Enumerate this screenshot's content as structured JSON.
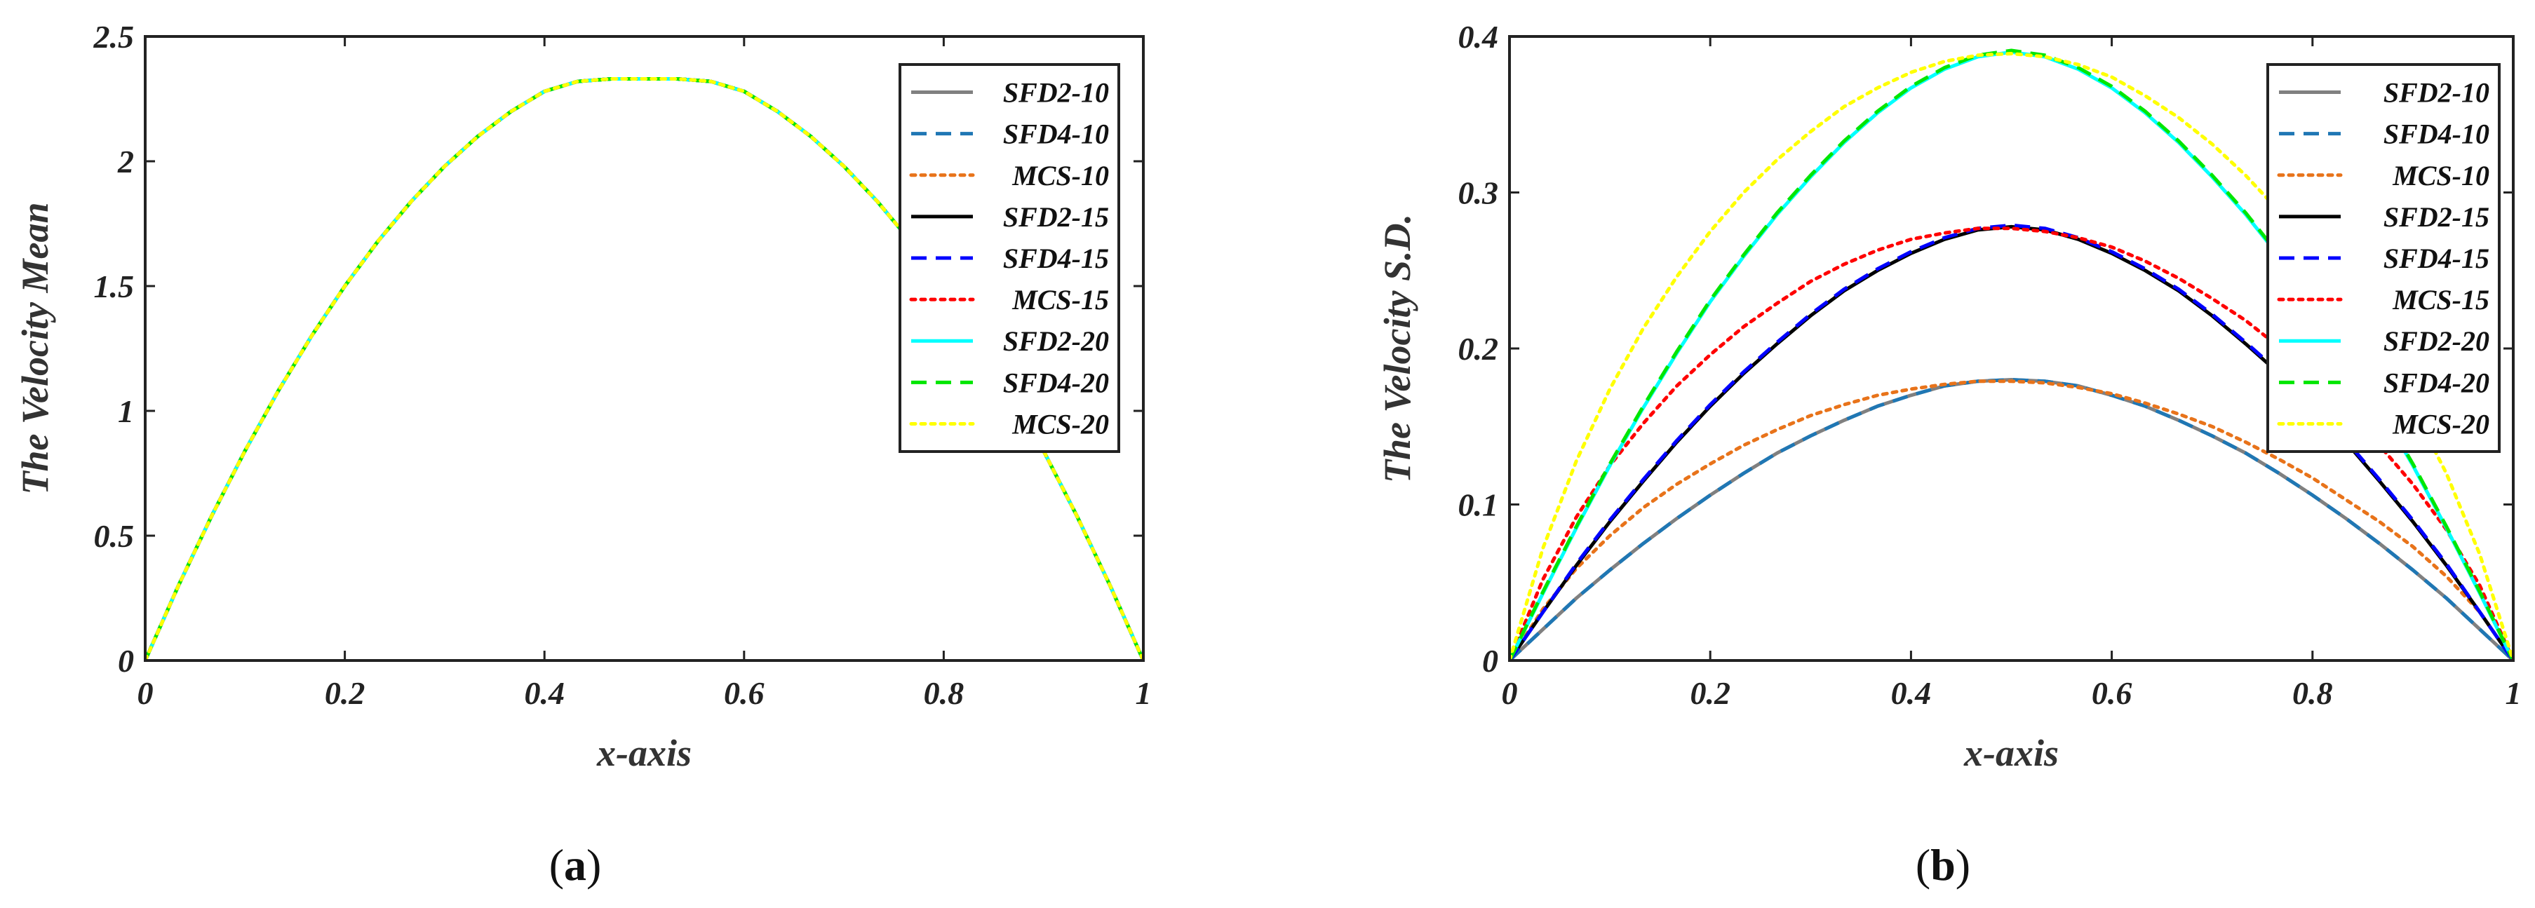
{
  "chart_data": [
    {
      "id": "a",
      "type": "line",
      "caption_open": "(",
      "caption_letter": "a",
      "caption_close": ")",
      "xlabel": "x-axis",
      "ylabel": "The Velocity Mean",
      "xlim": [
        0,
        1
      ],
      "ylim": [
        0,
        2.5
      ],
      "xticks": [
        0,
        0.2,
        0.4,
        0.6,
        0.8,
        1
      ],
      "xtick_labels": [
        "0",
        "0.2",
        "0.4",
        "0.6",
        "0.8",
        "1"
      ],
      "yticks": [
        0,
        0.5,
        1,
        1.5,
        2,
        2.5
      ],
      "ytick_labels": [
        "0",
        "0.5",
        "1",
        "1.5",
        "2",
        "2.5"
      ],
      "legend_position": "top-right",
      "x": [
        0,
        0.0333,
        0.0667,
        0.1,
        0.1333,
        0.1667,
        0.2,
        0.2333,
        0.2667,
        0.3,
        0.3333,
        0.3667,
        0.4,
        0.4333,
        0.4667,
        0.5,
        0.5333,
        0.5667,
        0.6,
        0.6333,
        0.6667,
        0.7,
        0.7333,
        0.7667,
        0.8,
        0.8333,
        0.8667,
        0.9,
        0.9333,
        0.9667,
        1
      ],
      "series": [
        {
          "name": "SFD2-10",
          "color": "#808080",
          "dash": "solid",
          "values": [
            0,
            0.3,
            0.58,
            0.84,
            1.08,
            1.3,
            1.5,
            1.68,
            1.84,
            1.98,
            2.1,
            2.2,
            2.28,
            2.32,
            2.33,
            2.33,
            2.33,
            2.32,
            2.28,
            2.2,
            2.1,
            1.98,
            1.84,
            1.68,
            1.5,
            1.3,
            1.08,
            0.84,
            0.58,
            0.3,
            0
          ]
        },
        {
          "name": "SFD4-10",
          "color": "#1f77b4",
          "dash": "dashed",
          "values": [
            0,
            0.3,
            0.58,
            0.84,
            1.08,
            1.3,
            1.5,
            1.68,
            1.84,
            1.98,
            2.1,
            2.2,
            2.28,
            2.32,
            2.33,
            2.33,
            2.33,
            2.32,
            2.28,
            2.2,
            2.1,
            1.98,
            1.84,
            1.68,
            1.5,
            1.3,
            1.08,
            0.84,
            0.58,
            0.3,
            0
          ]
        },
        {
          "name": "MCS-10",
          "color": "#e8731a",
          "dash": "dotted",
          "values": [
            0,
            0.3,
            0.58,
            0.84,
            1.08,
            1.3,
            1.5,
            1.68,
            1.84,
            1.98,
            2.1,
            2.2,
            2.28,
            2.32,
            2.33,
            2.33,
            2.33,
            2.32,
            2.28,
            2.2,
            2.1,
            1.98,
            1.84,
            1.68,
            1.5,
            1.3,
            1.08,
            0.84,
            0.58,
            0.3,
            0
          ]
        },
        {
          "name": "SFD2-15",
          "color": "#000000",
          "dash": "solid",
          "values": [
            0,
            0.3,
            0.58,
            0.84,
            1.08,
            1.3,
            1.5,
            1.68,
            1.84,
            1.98,
            2.1,
            2.2,
            2.28,
            2.32,
            2.33,
            2.33,
            2.33,
            2.32,
            2.28,
            2.2,
            2.1,
            1.98,
            1.84,
            1.68,
            1.5,
            1.3,
            1.08,
            0.84,
            0.58,
            0.3,
            0
          ]
        },
        {
          "name": "SFD4-15",
          "color": "#0000ff",
          "dash": "dashed",
          "values": [
            0,
            0.3,
            0.58,
            0.84,
            1.08,
            1.3,
            1.5,
            1.68,
            1.84,
            1.98,
            2.1,
            2.2,
            2.28,
            2.32,
            2.33,
            2.33,
            2.33,
            2.32,
            2.28,
            2.2,
            2.1,
            1.98,
            1.84,
            1.68,
            1.5,
            1.3,
            1.08,
            0.84,
            0.58,
            0.3,
            0
          ]
        },
        {
          "name": "MCS-15",
          "color": "#ff0000",
          "dash": "dotted",
          "values": [
            0,
            0.3,
            0.58,
            0.84,
            1.08,
            1.3,
            1.5,
            1.68,
            1.84,
            1.98,
            2.1,
            2.2,
            2.28,
            2.32,
            2.33,
            2.33,
            2.33,
            2.32,
            2.28,
            2.2,
            2.1,
            1.98,
            1.84,
            1.68,
            1.5,
            1.3,
            1.08,
            0.84,
            0.58,
            0.3,
            0
          ]
        },
        {
          "name": "SFD2-20",
          "color": "#00ffff",
          "dash": "solid",
          "values": [
            0,
            0.3,
            0.58,
            0.84,
            1.08,
            1.3,
            1.5,
            1.68,
            1.84,
            1.98,
            2.1,
            2.2,
            2.28,
            2.32,
            2.33,
            2.33,
            2.33,
            2.32,
            2.28,
            2.2,
            2.1,
            1.98,
            1.84,
            1.68,
            1.5,
            1.3,
            1.08,
            0.84,
            0.58,
            0.3,
            0
          ]
        },
        {
          "name": "SFD4-20",
          "color": "#00e600",
          "dash": "dashed",
          "values": [
            0,
            0.3,
            0.58,
            0.84,
            1.08,
            1.3,
            1.5,
            1.68,
            1.84,
            1.98,
            2.1,
            2.2,
            2.28,
            2.32,
            2.33,
            2.33,
            2.33,
            2.32,
            2.28,
            2.2,
            2.1,
            1.98,
            1.84,
            1.68,
            1.5,
            1.3,
            1.08,
            0.84,
            0.58,
            0.3,
            0
          ]
        },
        {
          "name": "MCS-20",
          "color": "#ffff00",
          "dash": "dotted",
          "values": [
            0,
            0.3,
            0.58,
            0.84,
            1.08,
            1.3,
            1.5,
            1.68,
            1.84,
            1.98,
            2.1,
            2.2,
            2.28,
            2.32,
            2.33,
            2.33,
            2.33,
            2.32,
            2.28,
            2.2,
            2.1,
            1.98,
            1.84,
            1.68,
            1.5,
            1.3,
            1.08,
            0.84,
            0.58,
            0.3,
            0
          ]
        }
      ]
    },
    {
      "id": "b",
      "type": "line",
      "caption_open": "(",
      "caption_letter": "b",
      "caption_close": ")",
      "xlabel": "x-axis",
      "ylabel": "The Velocity S.D.",
      "xlim": [
        0,
        1
      ],
      "ylim": [
        0,
        0.4
      ],
      "xticks": [
        0,
        0.2,
        0.4,
        0.6,
        0.8,
        1
      ],
      "xtick_labels": [
        "0",
        "0.2",
        "0.4",
        "0.6",
        "0.8",
        "1"
      ],
      "yticks": [
        0,
        0.1,
        0.2,
        0.3,
        0.4
      ],
      "ytick_labels": [
        "0",
        "0.1",
        "0.2",
        "0.3",
        "0.4"
      ],
      "legend_position": "top-right",
      "x": [
        0,
        0.0333,
        0.0667,
        0.1,
        0.1333,
        0.1667,
        0.2,
        0.2333,
        0.2667,
        0.3,
        0.3333,
        0.3667,
        0.4,
        0.4333,
        0.4667,
        0.5,
        0.5333,
        0.5667,
        0.6,
        0.6333,
        0.6667,
        0.7,
        0.7333,
        0.7667,
        0.8,
        0.8333,
        0.8667,
        0.9,
        0.9333,
        0.9667,
        1
      ],
      "series": [
        {
          "name": "SFD2-10",
          "color": "#808080",
          "dash": "solid",
          "values": [
            0,
            0.02,
            0.04,
            0.058,
            0.075,
            0.091,
            0.106,
            0.12,
            0.133,
            0.144,
            0.154,
            0.163,
            0.17,
            0.176,
            0.179,
            0.18,
            0.179,
            0.176,
            0.17,
            0.163,
            0.154,
            0.144,
            0.133,
            0.12,
            0.106,
            0.091,
            0.075,
            0.058,
            0.04,
            0.02,
            0
          ]
        },
        {
          "name": "SFD4-10",
          "color": "#1f77b4",
          "dash": "dashed",
          "values": [
            0,
            0.02,
            0.04,
            0.058,
            0.075,
            0.091,
            0.106,
            0.12,
            0.133,
            0.144,
            0.154,
            0.163,
            0.17,
            0.176,
            0.179,
            0.18,
            0.179,
            0.176,
            0.17,
            0.163,
            0.154,
            0.144,
            0.133,
            0.12,
            0.106,
            0.091,
            0.075,
            0.058,
            0.04,
            0.02,
            0
          ]
        },
        {
          "name": "MCS-10",
          "color": "#e8731a",
          "dash": "dotted",
          "values": [
            0,
            0.033,
            0.059,
            0.08,
            0.098,
            0.113,
            0.126,
            0.138,
            0.148,
            0.157,
            0.164,
            0.17,
            0.174,
            0.177,
            0.179,
            0.179,
            0.178,
            0.175,
            0.171,
            0.165,
            0.158,
            0.15,
            0.14,
            0.129,
            0.117,
            0.103,
            0.089,
            0.073,
            0.054,
            0.031,
            0
          ]
        },
        {
          "name": "SFD2-15",
          "color": "#000000",
          "dash": "solid",
          "values": [
            0,
            0.031,
            0.061,
            0.089,
            0.115,
            0.14,
            0.163,
            0.184,
            0.203,
            0.221,
            0.237,
            0.25,
            0.261,
            0.27,
            0.276,
            0.278,
            0.276,
            0.27,
            0.261,
            0.25,
            0.237,
            0.221,
            0.203,
            0.184,
            0.163,
            0.14,
            0.115,
            0.089,
            0.061,
            0.031,
            0
          ]
        },
        {
          "name": "SFD4-15",
          "color": "#0000ff",
          "dash": "dashed",
          "values": [
            0,
            0.031,
            0.062,
            0.09,
            0.116,
            0.141,
            0.164,
            0.185,
            0.204,
            0.222,
            0.238,
            0.251,
            0.262,
            0.271,
            0.277,
            0.279,
            0.277,
            0.271,
            0.262,
            0.251,
            0.238,
            0.222,
            0.204,
            0.185,
            0.164,
            0.141,
            0.116,
            0.09,
            0.062,
            0.031,
            0
          ]
        },
        {
          "name": "MCS-15",
          "color": "#ff0000",
          "dash": "dotted",
          "values": [
            0,
            0.052,
            0.092,
            0.125,
            0.152,
            0.176,
            0.196,
            0.214,
            0.229,
            0.243,
            0.254,
            0.263,
            0.27,
            0.274,
            0.277,
            0.277,
            0.275,
            0.271,
            0.265,
            0.256,
            0.245,
            0.232,
            0.218,
            0.201,
            0.182,
            0.161,
            0.138,
            0.113,
            0.084,
            0.048,
            0
          ]
        },
        {
          "name": "SFD2-20",
          "color": "#00ffff",
          "dash": "solid",
          "values": [
            0,
            0.043,
            0.085,
            0.125,
            0.162,
            0.197,
            0.23,
            0.259,
            0.286,
            0.31,
            0.332,
            0.351,
            0.367,
            0.379,
            0.387,
            0.39,
            0.387,
            0.379,
            0.367,
            0.351,
            0.332,
            0.31,
            0.286,
            0.259,
            0.23,
            0.197,
            0.162,
            0.125,
            0.085,
            0.043,
            0
          ]
        },
        {
          "name": "SFD4-20",
          "color": "#00e600",
          "dash": "dashed",
          "values": [
            0,
            0.044,
            0.086,
            0.126,
            0.163,
            0.198,
            0.231,
            0.26,
            0.287,
            0.311,
            0.333,
            0.352,
            0.368,
            0.38,
            0.388,
            0.391,
            0.388,
            0.38,
            0.368,
            0.352,
            0.333,
            0.311,
            0.287,
            0.26,
            0.231,
            0.198,
            0.163,
            0.126,
            0.086,
            0.044,
            0
          ]
        },
        {
          "name": "MCS-20",
          "color": "#ffff00",
          "dash": "dotted",
          "values": [
            0,
            0.072,
            0.128,
            0.174,
            0.213,
            0.246,
            0.275,
            0.3,
            0.321,
            0.339,
            0.355,
            0.367,
            0.377,
            0.384,
            0.388,
            0.389,
            0.387,
            0.382,
            0.374,
            0.362,
            0.348,
            0.331,
            0.311,
            0.288,
            0.262,
            0.232,
            0.199,
            0.162,
            0.12,
            0.068,
            0
          ]
        }
      ]
    }
  ]
}
